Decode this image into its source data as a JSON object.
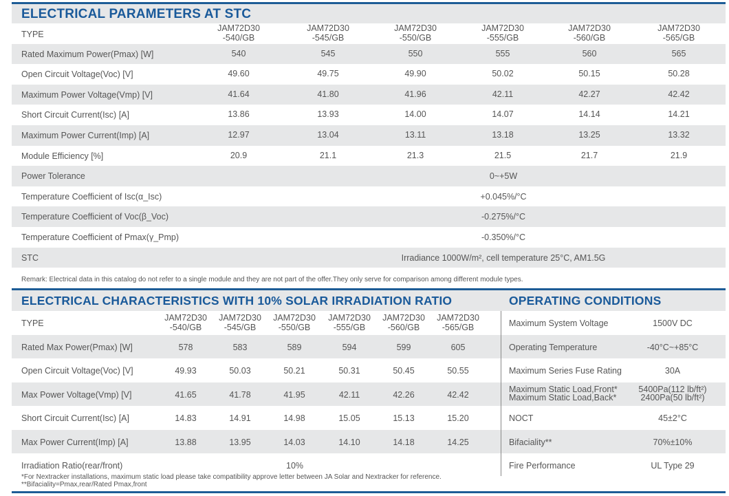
{
  "stc": {
    "title": "ELECTRICAL PARAMETERS AT STC",
    "type_label": "TYPE",
    "models": [
      [
        "JAM72D30",
        "-540/GB"
      ],
      [
        "JAM72D30",
        "-545/GB"
      ],
      [
        "JAM72D30",
        "-550/GB"
      ],
      [
        "JAM72D30",
        "-555/GB"
      ],
      [
        "JAM72D30",
        "-560/GB"
      ],
      [
        "JAM72D30",
        "-565/GB"
      ]
    ],
    "rows": [
      {
        "label": "Rated Maximum Power(Pmax) [W]",
        "values": [
          "540",
          "545",
          "550",
          "555",
          "560",
          "565"
        ]
      },
      {
        "label": "Open Circuit Voltage(Voc) [V]",
        "values": [
          "49.60",
          "49.75",
          "49.90",
          "50.02",
          "50.15",
          "50.28"
        ]
      },
      {
        "label": "Maximum Power Voltage(Vmp) [V]",
        "values": [
          "41.64",
          "41.80",
          "41.96",
          "42.11",
          "42.27",
          "42.42"
        ]
      },
      {
        "label": "Short Circuit Current(Isc) [A]",
        "values": [
          "13.86",
          "13.93",
          "14.00",
          "14.07",
          "14.14",
          "14.21"
        ]
      },
      {
        "label": "Maximum Power Current(Imp) [A]",
        "values": [
          "12.97",
          "13.04",
          "13.11",
          "13.18",
          "13.25",
          "13.32"
        ]
      },
      {
        "label": "Module Efficiency [%]",
        "values": [
          "20.9",
          "21.1",
          "21.3",
          "21.5",
          "21.7",
          "21.9"
        ]
      }
    ],
    "span_rows": [
      {
        "label": "Power Tolerance",
        "value": "0~+5W"
      },
      {
        "label": "Temperature Coefficient of Isc(α_Isc)",
        "value": "+0.045%/°C"
      },
      {
        "label": "Temperature Coefficient of Voc(β_Voc)",
        "value": "-0.275%/°C"
      },
      {
        "label": "Temperature Coefficient of Pmax(γ_Pmp)",
        "value": "-0.350%/°C"
      },
      {
        "label": "STC",
        "value": "Irradiance 1000W/m², cell temperature 25°C, AM1.5G"
      }
    ],
    "remark": "Remark: Electrical data in this catalog do not refer to a single module and they are not part of the offer.They only serve for comparison among different module types."
  },
  "bifacial": {
    "title": "ELECTRICAL CHARACTERISTICS WITH 10% SOLAR IRRADIATION RATIO",
    "type_label": "TYPE",
    "rows": [
      {
        "label": "Rated Max Power(Pmax) [W]",
        "values": [
          "578",
          "583",
          "589",
          "594",
          "599",
          "605"
        ]
      },
      {
        "label": "Open Circuit Voltage(Voc) [V]",
        "values": [
          "49.93",
          "50.03",
          "50.21",
          "50.31",
          "50.45",
          "50.55"
        ]
      },
      {
        "label": "Max Power Voltage(Vmp) [V]",
        "values": [
          "41.65",
          "41.78",
          "41.95",
          "42.11",
          "42.26",
          "42.42"
        ]
      },
      {
        "label": "Short Circuit Current(Isc) [A]",
        "values": [
          "14.83",
          "14.91",
          "14.98",
          "15.05",
          "15.13",
          "15.20"
        ]
      },
      {
        "label": "Max Power Current(Imp) [A]",
        "values": [
          "13.88",
          "13.95",
          "14.03",
          "14.10",
          "14.18",
          "14.25"
        ]
      }
    ],
    "irradiation": {
      "label": "Irradiation Ratio(rear/front)",
      "value": "10%"
    }
  },
  "operating": {
    "title": "OPERATING CONDITIONS",
    "rows": [
      {
        "label": "Maximum System Voltage",
        "value": "1500V DC"
      },
      {
        "label": "Operating Temperature",
        "value": "-40°C~+85°C"
      },
      {
        "label": "Maximum Series Fuse Rating",
        "value": "30A"
      },
      {
        "label": "Maximum Static Load,Front*",
        "value": "5400Pa(112 lb/ft²)",
        "label2": "Maximum Static Load,Back*",
        "value2": "2400Pa(50 lb/ft²)"
      },
      {
        "label": "NOCT",
        "value": "45±2°C"
      },
      {
        "label": "Bifaciality**",
        "value": "70%±10%"
      },
      {
        "label": "Fire Performance",
        "value": "UL Type 29"
      }
    ]
  },
  "footnotes": [
    "*For Nextracker installations, maximum static load please take compatibility approve letter between JA Solar and Nextracker for reference.",
    "**Bifaciality=Pmax,rear/Rated Pmax,front"
  ]
}
